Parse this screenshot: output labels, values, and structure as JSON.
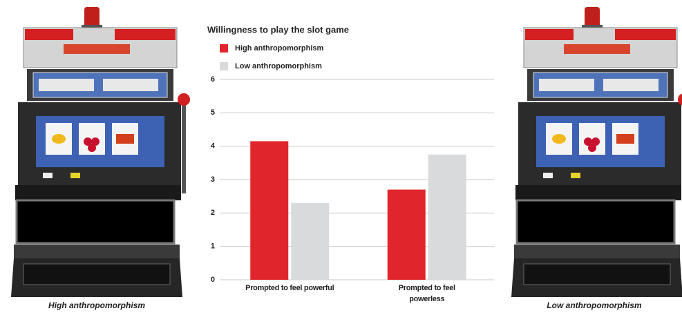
{
  "images": [
    {
      "caption": "High anthropomorphism"
    },
    {
      "caption": "Low anthropomorphism"
    }
  ],
  "chart_data": {
    "type": "bar",
    "title": "Willingness to play the slot game",
    "categories": [
      "Prompted to feel powerful",
      "Prompted to feel powerless"
    ],
    "series": [
      {
        "name": "High anthropomorphism",
        "color": "#e0262c",
        "values": [
          4.15,
          2.7
        ]
      },
      {
        "name": "Low anthropomorphism",
        "color": "#d8dadb",
        "values": [
          2.3,
          3.75
        ]
      }
    ],
    "ylim": [
      0,
      6
    ],
    "yticks": [
      0,
      1,
      2,
      3,
      4,
      5,
      6
    ],
    "grid": true,
    "legend": "top-left"
  }
}
